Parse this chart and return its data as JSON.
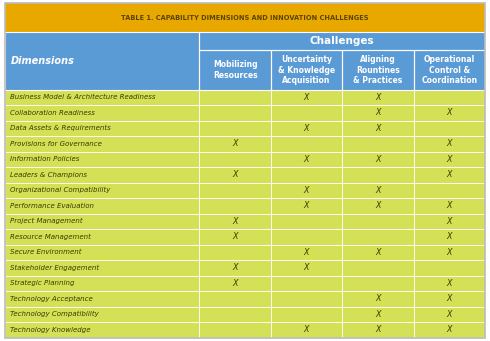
{
  "title": "TABLE 1. CAPABILITY DIMENSIONS AND INNOVATION CHALLENGES",
  "title_bg": "#E8A800",
  "title_color": "#5a4500",
  "header_bg": "#5B9BD5",
  "row_bg": "#D4E157",
  "grid_color": "#ffffff",
  "col1_header": "Dimensions",
  "challenges_header": "Challenges",
  "col_headers": [
    "Mobilizing\nResources",
    "Uncertainty\n& Knowledge\nAcquisition",
    "Aligning\nRountines\n& Practices",
    "Operational\nControl &\nCoordination"
  ],
  "rows": [
    [
      "Business Model & Architecture Readiness",
      0,
      1,
      1,
      0
    ],
    [
      "Collaboration Readiness",
      0,
      0,
      1,
      1
    ],
    [
      "Data Assets & Requirements",
      0,
      1,
      1,
      0
    ],
    [
      "Provisions for Governance",
      1,
      0,
      0,
      1
    ],
    [
      "Information Policies",
      0,
      1,
      1,
      1
    ],
    [
      "Leaders & Champions",
      1,
      0,
      0,
      1
    ],
    [
      "Organizational Compatibility",
      0,
      1,
      1,
      0
    ],
    [
      "Performance Evaluation",
      0,
      1,
      1,
      1
    ],
    [
      "Project Management",
      1,
      0,
      0,
      1
    ],
    [
      "Resource Management",
      1,
      0,
      0,
      1
    ],
    [
      "Secure Environment",
      0,
      1,
      1,
      1
    ],
    [
      "Stakeholder Engagement",
      1,
      1,
      0,
      0
    ],
    [
      "Strategic Planning",
      1,
      0,
      0,
      1
    ],
    [
      "Technology Acceptance",
      0,
      0,
      1,
      1
    ],
    [
      "Technology Compatibility",
      0,
      0,
      1,
      1
    ],
    [
      "Technology Knowledge",
      0,
      1,
      1,
      1
    ]
  ],
  "fig_width": 4.9,
  "fig_height": 3.41,
  "dpi": 100
}
